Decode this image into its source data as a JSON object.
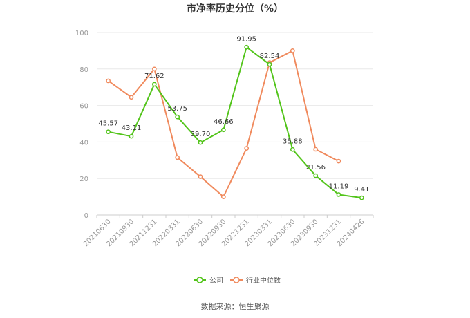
{
  "chart_data": {
    "type": "line",
    "title": "市净率历史分位（%）",
    "categories": [
      "20210630",
      "20210930",
      "20211231",
      "20220331",
      "20220630",
      "20220930",
      "20221231",
      "20230331",
      "20230630",
      "20230930",
      "20231231",
      "20240426"
    ],
    "ylim": [
      0,
      100
    ],
    "yticks": [
      0,
      20,
      40,
      60,
      80,
      100
    ],
    "grid": true,
    "legend_position": "bottom-center",
    "series": [
      {
        "name": "公司",
        "color": "#52c41a",
        "values": [
          45.57,
          43.11,
          71.62,
          53.75,
          39.7,
          46.66,
          91.95,
          82.54,
          35.88,
          21.56,
          11.19,
          9.41
        ],
        "labels": [
          "45.57",
          "43.11",
          "71.62",
          "53.75",
          "39.70",
          "46.66",
          "91.95",
          "82.54",
          "35.88",
          "21.56",
          "11.19",
          "9.41"
        ]
      },
      {
        "name": "行业中位数",
        "color": "#f08a5d",
        "values": [
          73.5,
          64.5,
          80.0,
          31.5,
          21.0,
          10.0,
          36.5,
          83.5,
          90.0,
          36.0,
          29.5,
          null
        ]
      }
    ]
  },
  "source": "数据来源：恒生聚源"
}
